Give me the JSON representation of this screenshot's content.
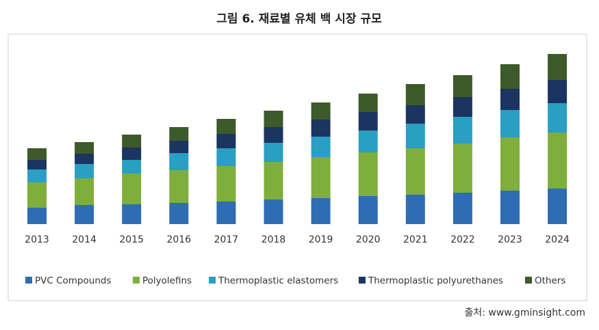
{
  "chart_data": {
    "type": "stacked_bar",
    "title": "그림 6. 재료별 유체 백 시장 규모",
    "categories": [
      "2013",
      "2014",
      "2015",
      "2016",
      "2017",
      "2018",
      "2019",
      "2020",
      "2021",
      "2022",
      "2023",
      "2024"
    ],
    "series": [
      {
        "name": "PVC Compounds",
        "color": "#2e6db4",
        "values": [
          24,
          28,
          29,
          31,
          33,
          36,
          38,
          41,
          43,
          46,
          49,
          52
        ]
      },
      {
        "name": "Polyolefins",
        "color": "#7fae3c",
        "values": [
          37,
          39,
          45,
          48,
          52,
          55,
          60,
          64,
          68,
          72,
          78,
          82
        ]
      },
      {
        "name": "Thermoplastic elastomers",
        "color": "#2b9ec4",
        "values": [
          19,
          21,
          20,
          25,
          26,
          28,
          30,
          32,
          36,
          39,
          40,
          43
        ]
      },
      {
        "name": "Thermoplastic polyurethanes",
        "color": "#1c3460",
        "values": [
          14,
          15,
          18,
          18,
          21,
          23,
          25,
          27,
          27,
          29,
          31,
          34
        ]
      },
      {
        "name": "Others",
        "color": "#3d5a2a",
        "values": [
          17,
          17,
          19,
          20,
          22,
          24,
          25,
          27,
          31,
          32,
          36,
          38
        ]
      }
    ],
    "source": "출처: www.gminsight.com"
  }
}
